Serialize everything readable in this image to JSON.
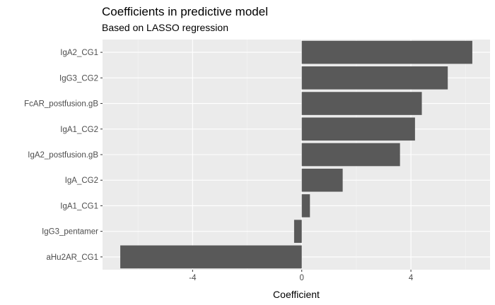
{
  "chart_data": {
    "type": "bar",
    "orientation": "horizontal",
    "title": "Coefficients in predictive model",
    "subtitle": "Based on LASSO regression",
    "xlabel": "Coefficient",
    "ylabel": "",
    "categories": [
      "IgA2_CG1",
      "IgG3_CG2",
      "FcAR_postfusion.gB",
      "IgA1_CG2",
      "IgA2_postfusion.gB",
      "IgA_CG2",
      "IgA1_CG1",
      "IgG3_pentamer",
      "aHu2AR_CG1"
    ],
    "values": [
      6.25,
      5.35,
      4.4,
      4.15,
      3.6,
      1.5,
      0.3,
      -0.28,
      -6.65
    ],
    "xlim": [
      -7.3,
      6.9
    ],
    "xticks": [
      -4,
      0,
      4
    ],
    "xtick_labels": [
      "-4",
      "0",
      "4"
    ],
    "grid": true,
    "legend": "none",
    "colors": {
      "bar": "#595959",
      "panel": "#ebebeb",
      "grid_major": "#ffffff"
    }
  }
}
